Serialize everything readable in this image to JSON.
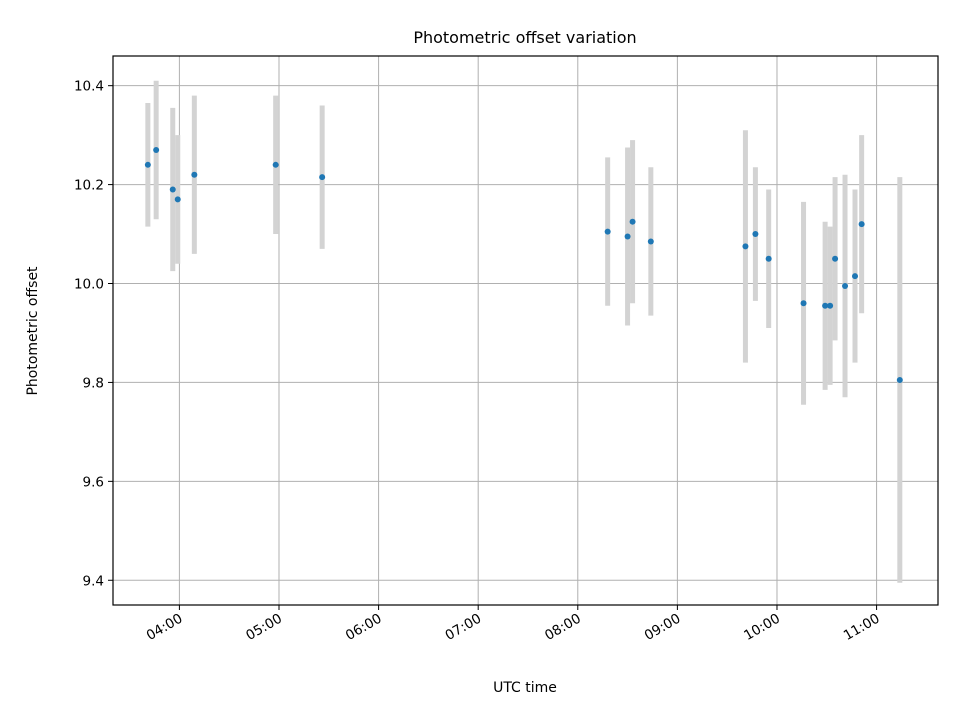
{
  "chart_data": {
    "type": "scatter",
    "title": "Photometric offset variation",
    "xlabel": "UTC time",
    "ylabel": "Photometric offset",
    "x_axis_type": "time",
    "xlim": [
      "03:20",
      "11:37"
    ],
    "ylim": [
      9.35,
      10.46
    ],
    "x_ticks": [
      "04:00",
      "05:00",
      "06:00",
      "07:00",
      "08:00",
      "09:00",
      "10:00",
      "11:00"
    ],
    "y_ticks": [
      "9.4",
      "9.6",
      "9.8",
      "10.0",
      "10.2",
      "10.4"
    ],
    "grid": true,
    "colors": {
      "marker": "#1f77b4",
      "errorbar": "#d3d3d3",
      "grid": "#b0b0b0"
    },
    "points": [
      {
        "x": "03:41",
        "y": 10.24,
        "err": 0.125
      },
      {
        "x": "03:46",
        "y": 10.27,
        "err": 0.14
      },
      {
        "x": "03:56",
        "y": 10.19,
        "err": 0.165
      },
      {
        "x": "03:59",
        "y": 10.17,
        "err": 0.13
      },
      {
        "x": "04:09",
        "y": 10.22,
        "err": 0.16
      },
      {
        "x": "04:58",
        "y": 10.24,
        "err": 0.14
      },
      {
        "x": "05:26",
        "y": 10.215,
        "err": 0.145
      },
      {
        "x": "08:18",
        "y": 10.105,
        "err": 0.15
      },
      {
        "x": "08:30",
        "y": 10.095,
        "err": 0.18
      },
      {
        "x": "08:33",
        "y": 10.125,
        "err": 0.165
      },
      {
        "x": "08:44",
        "y": 10.085,
        "err": 0.15
      },
      {
        "x": "09:41",
        "y": 10.075,
        "err": 0.235
      },
      {
        "x": "09:47",
        "y": 10.1,
        "err": 0.135
      },
      {
        "x": "09:55",
        "y": 10.05,
        "err": 0.14
      },
      {
        "x": "10:16",
        "y": 9.96,
        "err": 0.205
      },
      {
        "x": "10:29",
        "y": 9.955,
        "err": 0.17
      },
      {
        "x": "10:32",
        "y": 9.955,
        "err": 0.16
      },
      {
        "x": "10:35",
        "y": 10.05,
        "err": 0.165
      },
      {
        "x": "10:41",
        "y": 9.995,
        "err": 0.225
      },
      {
        "x": "10:47",
        "y": 10.015,
        "err": 0.175
      },
      {
        "x": "10:51",
        "y": 10.12,
        "err": 0.18
      },
      {
        "x": "11:14",
        "y": 9.805,
        "err": 0.41
      }
    ]
  }
}
